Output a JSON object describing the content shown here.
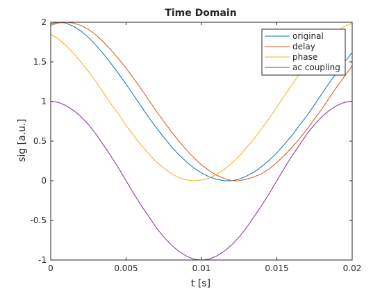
{
  "chart_data": {
    "type": "line",
    "title": "Time Domain",
    "xlabel": "t [s]",
    "ylabel": "sig [a.u.]",
    "xlim": [
      0,
      0.02
    ],
    "ylim": [
      -1,
      2
    ],
    "xticks": [
      0,
      0.005,
      0.01,
      0.015,
      0.02
    ],
    "xtick_labels": [
      "0",
      "0.005",
      "0.01",
      "0.015",
      "0.02"
    ],
    "yticks": [
      -1,
      -0.5,
      0,
      0.5,
      1,
      1.5,
      2
    ],
    "ytick_labels": [
      "-1",
      "-0.5",
      "0",
      "0.5",
      "1",
      "1.5",
      "2"
    ],
    "grid": false,
    "legend": "top-right",
    "x": [
      0,
      0.0005,
      0.001,
      0.0015,
      0.002,
      0.0025,
      0.003,
      0.0035,
      0.004,
      0.0045,
      0.005,
      0.0055,
      0.006,
      0.0065,
      0.007,
      0.0075,
      0.008,
      0.0085,
      0.009,
      0.0095,
      0.01,
      0.0105,
      0.011,
      0.0115,
      0.012,
      0.0125,
      0.013,
      0.0135,
      0.014,
      0.0145,
      0.015,
      0.0155,
      0.016,
      0.0165,
      0.017,
      0.0175,
      0.018,
      0.0185,
      0.019,
      0.0195,
      0.02
    ],
    "series": [
      {
        "name": "original",
        "color": "#0072BD",
        "values": [
          1.98,
          2.0,
          1.99,
          1.95,
          1.89,
          1.81,
          1.71,
          1.6,
          1.48,
          1.35,
          1.22,
          1.08,
          0.94,
          0.8,
          0.67,
          0.55,
          0.43,
          0.33,
          0.24,
          0.16,
          0.1,
          0.05,
          0.02,
          0.0,
          0.0,
          0.02,
          0.06,
          0.11,
          0.18,
          0.26,
          0.35,
          0.46,
          0.57,
          0.7,
          0.82,
          0.96,
          1.1,
          1.24,
          1.37,
          1.5,
          1.62
        ]
      },
      {
        "name": "delay",
        "color": "#D95319",
        "values": [
          1.96,
          1.99,
          2.0,
          1.99,
          1.96,
          1.91,
          1.84,
          1.75,
          1.65,
          1.54,
          1.42,
          1.29,
          1.16,
          1.02,
          0.88,
          0.75,
          0.62,
          0.5,
          0.39,
          0.29,
          0.2,
          0.13,
          0.07,
          0.03,
          0.0,
          0.0,
          0.02,
          0.05,
          0.09,
          0.15,
          0.23,
          0.32,
          0.42,
          0.53,
          0.65,
          0.78,
          0.91,
          1.05,
          1.19,
          1.32,
          1.45
        ]
      },
      {
        "name": "phase",
        "color": "#EDB120",
        "values": [
          1.85,
          1.79,
          1.71,
          1.61,
          1.5,
          1.38,
          1.25,
          1.11,
          0.97,
          0.84,
          0.7,
          0.57,
          0.45,
          0.34,
          0.24,
          0.16,
          0.09,
          0.04,
          0.01,
          0.0,
          0.01,
          0.03,
          0.08,
          0.14,
          0.22,
          0.31,
          0.42,
          0.53,
          0.66,
          0.79,
          0.93,
          1.07,
          1.21,
          1.35,
          1.48,
          1.6,
          1.71,
          1.81,
          1.89,
          1.95,
          1.99
        ]
      },
      {
        "name": "ac coupling",
        "color": "#7E2F8E",
        "values": [
          1.0,
          0.99,
          0.95,
          0.89,
          0.81,
          0.71,
          0.59,
          0.45,
          0.31,
          0.16,
          0.0,
          -0.16,
          -0.31,
          -0.45,
          -0.59,
          -0.71,
          -0.81,
          -0.89,
          -0.95,
          -0.99,
          -1.0,
          -0.99,
          -0.95,
          -0.89,
          -0.81,
          -0.71,
          -0.59,
          -0.45,
          -0.31,
          -0.16,
          0.0,
          0.16,
          0.31,
          0.45,
          0.59,
          0.71,
          0.81,
          0.89,
          0.95,
          0.99,
          1.0
        ]
      }
    ]
  }
}
